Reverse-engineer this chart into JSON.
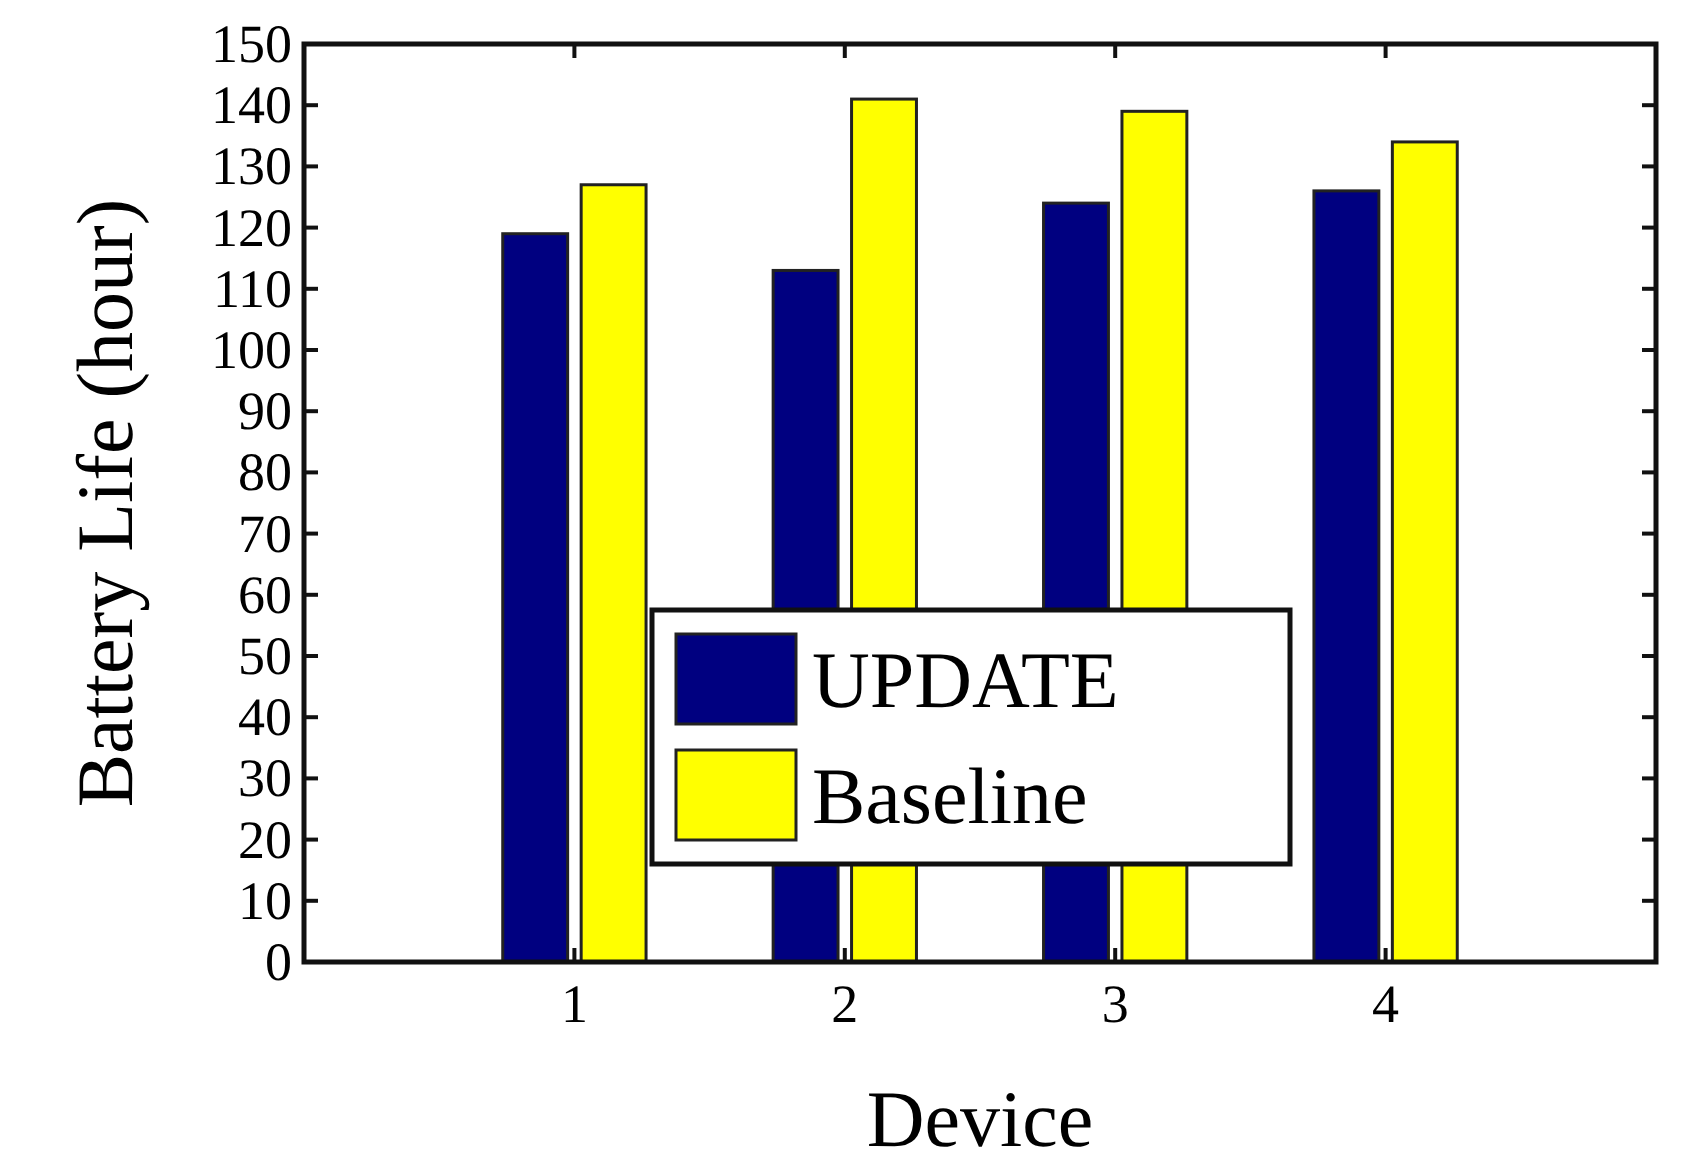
{
  "chart_data": {
    "type": "bar",
    "xlabel": "Device",
    "ylabel": "Battery Life (hour)",
    "x": [
      1,
      2,
      3,
      4
    ],
    "xlim": [
      0,
      5
    ],
    "xticks": [
      1,
      2,
      3,
      4
    ],
    "ylim": [
      0,
      150
    ],
    "yticks": [
      0,
      10,
      20,
      30,
      40,
      50,
      60,
      70,
      80,
      90,
      100,
      110,
      120,
      130,
      140,
      150
    ],
    "series": [
      {
        "name": "UPDATE",
        "color": "#000080",
        "values": [
          119,
          113,
          124,
          126
        ]
      },
      {
        "name": "Baseline",
        "color": "#ffff00",
        "values": [
          127,
          141,
          139,
          134
        ]
      }
    ],
    "legend": "bottom",
    "grid": false
  }
}
